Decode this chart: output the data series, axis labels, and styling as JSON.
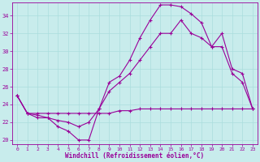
{
  "xlabel": "Windchill (Refroidissement éolien,°C)",
  "bg_color": "#c8ecec",
  "line_color": "#990099",
  "grid_color": "#aadddd",
  "xlim": [
    -0.5,
    23.5
  ],
  "ylim": [
    19.5,
    35.5
  ],
  "xticks": [
    0,
    1,
    2,
    3,
    4,
    5,
    6,
    7,
    8,
    9,
    10,
    11,
    12,
    13,
    14,
    15,
    16,
    17,
    18,
    19,
    20,
    21,
    22,
    23
  ],
  "yticks": [
    20,
    22,
    24,
    26,
    28,
    30,
    32,
    34
  ],
  "series1_x": [
    0,
    1,
    2,
    3,
    4,
    5,
    6,
    7,
    8,
    9,
    10,
    11,
    12,
    13,
    14,
    15,
    16,
    17,
    18,
    19,
    20,
    21,
    22,
    23
  ],
  "series1_y": [
    25.0,
    23.0,
    22.5,
    22.5,
    21.5,
    21.0,
    20.0,
    20.0,
    23.5,
    26.5,
    27.2,
    29.0,
    31.5,
    33.5,
    35.2,
    35.2,
    35.0,
    34.2,
    33.2,
    30.5,
    30.5,
    27.5,
    26.5,
    23.5
  ],
  "series2_x": [
    0,
    1,
    2,
    3,
    4,
    5,
    6,
    7,
    8,
    9,
    10,
    11,
    12,
    13,
    14,
    15,
    16,
    17,
    18,
    19,
    20,
    21,
    22,
    23
  ],
  "series2_y": [
    25.0,
    23.0,
    22.8,
    22.5,
    22.2,
    22.0,
    21.5,
    22.0,
    23.5,
    25.5,
    26.5,
    27.5,
    29.0,
    30.5,
    32.0,
    32.0,
    33.5,
    32.0,
    31.5,
    30.5,
    32.0,
    28.0,
    27.5,
    23.5
  ],
  "series3_x": [
    0,
    1,
    2,
    3,
    4,
    5,
    6,
    7,
    8,
    9,
    10,
    11,
    12,
    13,
    14,
    15,
    16,
    17,
    18,
    19,
    20,
    21,
    22,
    23
  ],
  "series3_y": [
    25.0,
    23.0,
    23.0,
    23.0,
    23.0,
    23.0,
    23.0,
    23.0,
    23.0,
    23.0,
    23.3,
    23.3,
    23.5,
    23.5,
    23.5,
    23.5,
    23.5,
    23.5,
    23.5,
    23.5,
    23.5,
    23.5,
    23.5,
    23.5
  ]
}
